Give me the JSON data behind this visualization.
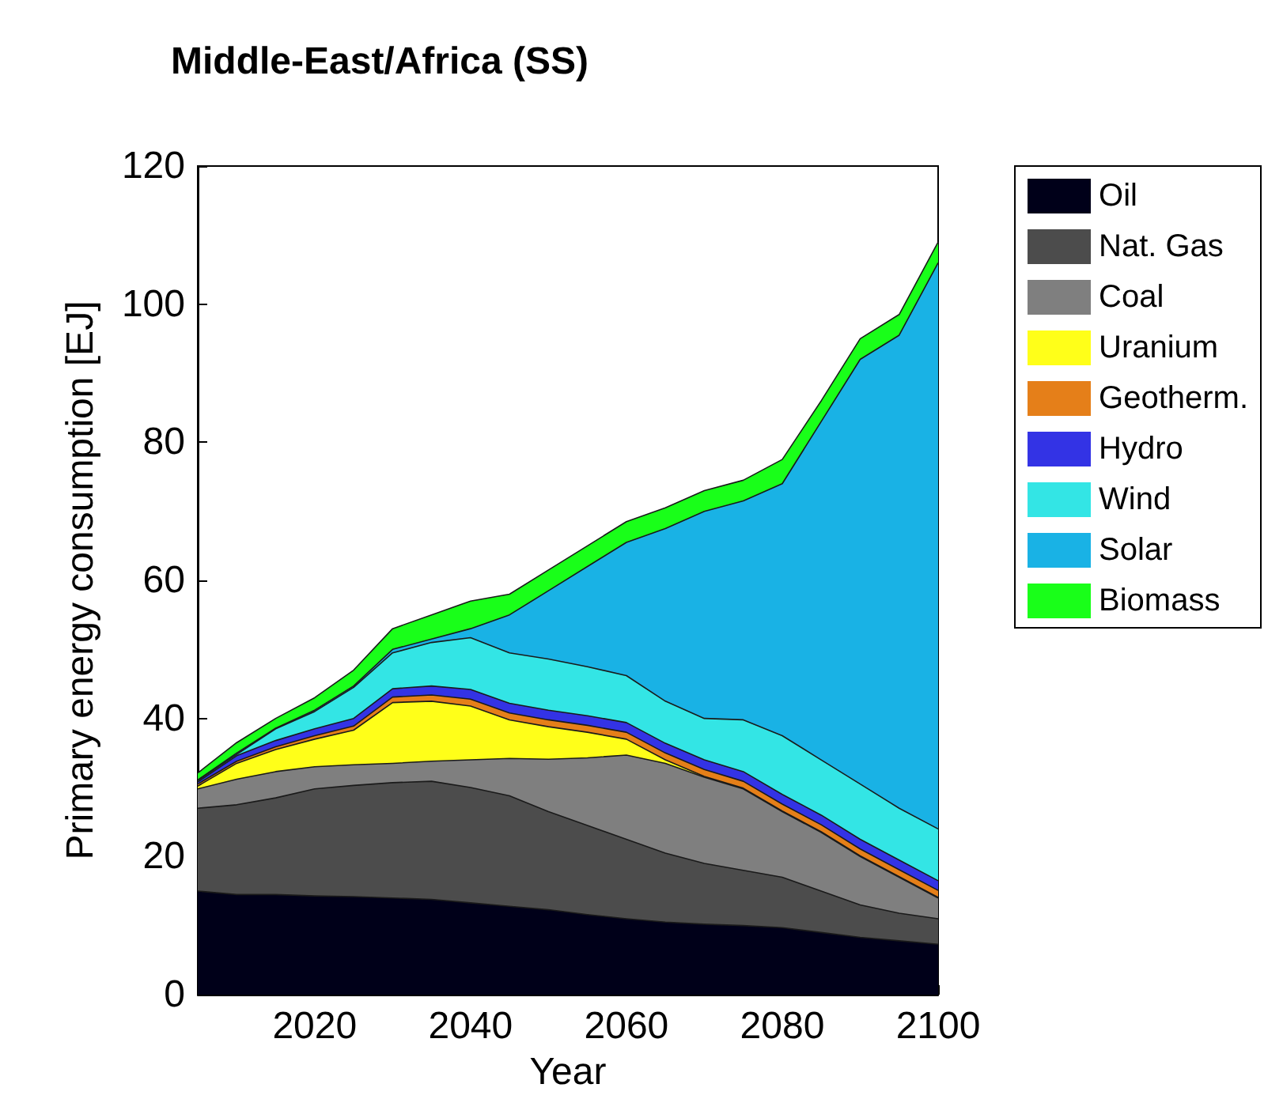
{
  "chart_data": {
    "type": "area",
    "stacked": true,
    "title": "Middle-East/Africa (SS)",
    "xlabel": "Year",
    "ylabel": "Primary energy consumption [EJ]",
    "x": [
      2005,
      2010,
      2015,
      2020,
      2025,
      2030,
      2035,
      2040,
      2045,
      2050,
      2055,
      2060,
      2065,
      2070,
      2075,
      2080,
      2085,
      2090,
      2095,
      2100
    ],
    "xlim": [
      2005,
      2100
    ],
    "xticks": [
      2020,
      2040,
      2060,
      2080,
      2100
    ],
    "ylim": [
      0,
      120
    ],
    "yticks": [
      0,
      20,
      40,
      60,
      80,
      100,
      120
    ],
    "grid": false,
    "legend": "top right",
    "marker": "none",
    "series": [
      {
        "name": "Oil",
        "color": "#000019",
        "values": [
          15,
          14.5,
          14.5,
          14.3,
          14.2,
          14,
          13.8,
          13.3,
          12.8,
          12.3,
          11.6,
          11,
          10.5,
          10.2,
          10,
          9.7,
          9,
          8.3,
          7.8,
          7.3
        ]
      },
      {
        "name": "Nat. Gas",
        "color": "#4c4c4c",
        "values": [
          12,
          13,
          14,
          15.5,
          16.1,
          16.7,
          17.1,
          16.7,
          16,
          14.2,
          12.9,
          11.5,
          10,
          8.8,
          8,
          7.3,
          6,
          4.7,
          4,
          3.7
        ]
      },
      {
        "name": "Coal",
        "color": "#7f7f7f",
        "values": [
          2.8,
          3.7,
          3.8,
          3.2,
          3,
          2.8,
          2.9,
          4,
          5.4,
          7.6,
          9.8,
          12.2,
          13,
          12.5,
          11.8,
          9.5,
          8.5,
          7,
          5.2,
          3
        ]
      },
      {
        "name": "Uranium",
        "color": "#ffff19",
        "values": [
          0.4,
          2.3,
          3.2,
          4,
          5,
          8.8,
          8.7,
          7.8,
          5.6,
          4.7,
          3.7,
          2.3,
          0.5,
          0.1,
          0.1,
          0.1,
          0.1,
          0.1,
          0.1,
          0.1
        ]
      },
      {
        "name": "Geotherm.",
        "color": "#e57f19",
        "values": [
          0.3,
          0.3,
          0.4,
          0.5,
          0.6,
          0.8,
          0.9,
          1,
          1,
          1,
          1,
          1,
          1,
          1,
          1,
          1,
          1,
          1,
          1,
          1
        ]
      },
      {
        "name": "Hydro",
        "color": "#3333e5",
        "values": [
          0.3,
          0.8,
          0.9,
          1,
          1.1,
          1.2,
          1.3,
          1.4,
          1.4,
          1.4,
          1.4,
          1.4,
          1.4,
          1.4,
          1.4,
          1.4,
          1.4,
          1.4,
          1.4,
          1.4
        ]
      },
      {
        "name": "Wind",
        "color": "#33e5e5",
        "values": [
          0.2,
          0.2,
          1.7,
          2.5,
          4.5,
          5.2,
          6.3,
          7.5,
          7.3,
          7.4,
          7.1,
          6.8,
          6.1,
          6,
          7.5,
          8.5,
          8,
          8,
          7.5,
          7.5
        ]
      },
      {
        "name": "Solar",
        "color": "#19b2e5",
        "values": [
          0.1,
          0.2,
          0.1,
          0.2,
          0.2,
          0.5,
          0.5,
          1.3,
          5.5,
          9.9,
          14.5,
          19.3,
          25,
          30,
          31.7,
          36.5,
          49,
          61.5,
          68.5,
          82
        ]
      },
      {
        "name": "Biomass",
        "color": "#19ff19",
        "values": [
          1,
          1.5,
          1.4,
          1.8,
          2.3,
          3,
          3.5,
          4,
          3,
          3,
          3,
          3,
          3,
          3,
          3,
          3.5,
          3,
          3,
          3,
          3
        ]
      }
    ]
  }
}
